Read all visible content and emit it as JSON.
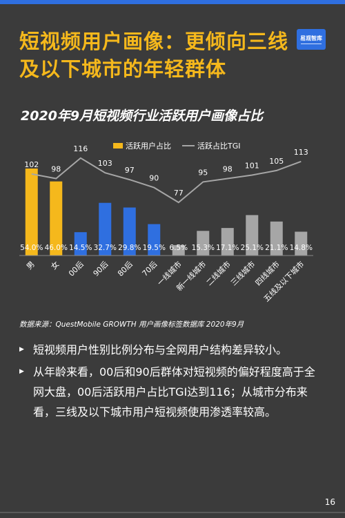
{
  "page": {
    "title": "短视频用户画像：更倾向三线及以下城市的年轻群体",
    "logo_text": "易观智库",
    "subtitle": "2020年9月短视频行业活跃用户画像占比",
    "source": "数据来源：QuestMobile GROWTH 用户画像标签数据库 2020年9月",
    "bullets": [
      "短视频用户性别比例分布与全网用户结构差异较小。",
      "从年龄来看，00后和90后群体对短视频的偏好程度高于全网大盘，00后活跃用户占比TGI达到116；从城市分布来看，三线及以下城市用户短视频使用渗透率较高。"
    ],
    "page_number": "16"
  },
  "chart_data": {
    "type": "bar",
    "title": "2020年9月短视频行业活跃用户画像占比",
    "categories": [
      "男",
      "女",
      "00后",
      "90后",
      "80后",
      "70后",
      "一线城市",
      "新一线城市",
      "二线城市",
      "三线城市",
      "四线城市",
      "五线及以下城市"
    ],
    "series": [
      {
        "name": "活跃用户占比",
        "kind": "bar",
        "values": [
          54.0,
          46.0,
          14.5,
          32.7,
          29.8,
          19.5,
          6.5,
          15.3,
          17.1,
          25.1,
          21.1,
          14.8
        ],
        "labels": [
          "54.0%",
          "46.0%",
          "14.5%",
          "32.7%",
          "29.8%",
          "19.5%",
          "6.5%",
          "15.3%",
          "17.1%",
          "25.1%",
          "21.1%",
          "14.8%"
        ]
      },
      {
        "name": "活跃占比TGI",
        "kind": "line",
        "values": [
          102,
          98,
          116,
          103,
          97,
          90,
          77,
          95,
          98,
          101,
          105,
          113
        ]
      }
    ],
    "bar_colors": [
      "#f5b81c",
      "#f5b81c",
      "#2f6fe0",
      "#2f6fe0",
      "#2f6fe0",
      "#2f6fe0",
      "#a6a6a6",
      "#a6a6a6",
      "#a6a6a6",
      "#a6a6a6",
      "#a6a6a6",
      "#a6a6a6"
    ],
    "legend_colors": {
      "bar": "#f5b81c",
      "line": "#a6a6a6"
    },
    "legend_position": "top",
    "ylim": [
      0,
      60
    ],
    "tgi_lim": [
      40,
      125
    ]
  }
}
